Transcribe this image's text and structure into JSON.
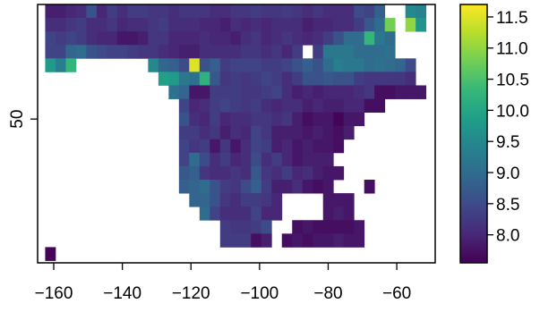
{
  "chart_data": {
    "type": "heatmap",
    "title": "",
    "xlabel": "",
    "ylabel": "",
    "xlim": [
      -164.7,
      -48.8
    ],
    "ylim": [
      18.0,
      75.5
    ],
    "x_ticks": [
      -160,
      -140,
      -120,
      -100,
      -80,
      -60
    ],
    "x_tick_labels": [
      "−160",
      "−140",
      "−120",
      "−100",
      "−80",
      "−60"
    ],
    "y_ticks": [
      50
    ],
    "y_tick_labels": [
      "50"
    ],
    "cell_size_deg": 3,
    "x_centers": [
      -161,
      -158,
      -155,
      -152,
      -149,
      -146,
      -143,
      -140,
      -137,
      -134,
      -131,
      -128,
      -125,
      -122,
      -119,
      -116,
      -113,
      -110,
      -107,
      -104,
      -101,
      -98,
      -95,
      -92,
      -89,
      -86,
      -83,
      -80,
      -77,
      -74,
      -71,
      -68,
      -65,
      -62,
      -59,
      -56,
      -53,
      -50
    ],
    "y_centers": [
      74,
      71,
      68,
      65,
      62,
      59,
      56,
      53,
      50,
      47,
      44,
      41,
      38,
      35,
      32,
      29,
      26,
      23,
      20
    ],
    "values": [
      [
        7.9,
        7.9,
        8.0,
        8.1,
        8.6,
        8.0,
        8.3,
        8.1,
        8.3,
        8.3,
        8.2,
        8.2,
        8.1,
        8.2,
        8.2,
        8.2,
        8.1,
        8.1,
        8.2,
        8.2,
        8.3,
        8.2,
        8.2,
        8.3,
        8.2,
        8.1,
        8.2,
        8.1,
        8.1,
        8.1,
        8.5,
        8.4,
        8.8,
        null,
        null,
        9.5,
        9.4,
        null
      ],
      [
        8.1,
        8.1,
        8.2,
        8.3,
        8.1,
        8.1,
        8.2,
        8.0,
        8.1,
        8.1,
        8.2,
        8.3,
        8.1,
        8.1,
        8.1,
        8.0,
        8.0,
        7.9,
        8.1,
        8.0,
        8.1,
        8.0,
        8.1,
        8.1,
        8.1,
        7.9,
        8.0,
        8.0,
        8.1,
        8.1,
        8.3,
        8.7,
        9.0,
        10.8,
        null,
        11.0,
        9.7,
        null
      ],
      [
        8.4,
        8.3,
        8.4,
        8.3,
        8.1,
        8.0,
        8.0,
        7.8,
        7.8,
        7.9,
        8.2,
        8.2,
        8.0,
        8.0,
        8.0,
        8.1,
        8.0,
        8.0,
        7.9,
        8.1,
        8.2,
        8.0,
        8.1,
        8.2,
        8.1,
        8.0,
        8.1,
        8.3,
        8.6,
        9.0,
        9.0,
        10.3,
        9.2,
        9.0,
        null,
        null,
        null,
        null
      ],
      [
        8.4,
        8.4,
        8.9,
        9.0,
        8.6,
        8.5,
        8.4,
        8.4,
        8.3,
        8.2,
        8.2,
        8.1,
        8.0,
        7.9,
        7.9,
        8.1,
        8.1,
        8.1,
        8.1,
        8.2,
        8.2,
        8.1,
        8.2,
        8.0,
        8.3,
        null,
        8.3,
        9.2,
        9.2,
        9.2,
        9.0,
        9.0,
        9.0,
        9.1,
        null,
        null,
        null,
        null
      ],
      [
        9.8,
        9.3,
        10.3,
        null,
        null,
        null,
        null,
        null,
        null,
        null,
        9.5,
        8.9,
        8.8,
        8.5,
        11.5,
        8.6,
        8.8,
        8.3,
        8.4,
        8.4,
        8.4,
        8.3,
        8.3,
        8.4,
        8.6,
        8.8,
        8.6,
        9.0,
        9.3,
        9.2,
        9.2,
        9.0,
        9.1,
        9.0,
        8.9,
        8.5,
        null,
        null
      ],
      [
        null,
        null,
        null,
        null,
        null,
        null,
        null,
        null,
        null,
        null,
        null,
        9.9,
        9.8,
        9.2,
        9.1,
        10.2,
        8.7,
        8.2,
        8.3,
        8.2,
        8.3,
        8.4,
        8.3,
        8.1,
        8.3,
        8.6,
        8.6,
        8.7,
        8.6,
        8.6,
        8.3,
        8.2,
        8.2,
        8.2,
        8.2,
        8.1,
        null,
        null
      ],
      [
        null,
        null,
        null,
        null,
        null,
        null,
        null,
        null,
        null,
        null,
        null,
        null,
        9.1,
        8.9,
        7.8,
        7.8,
        8.3,
        8.3,
        8.3,
        8.2,
        8.2,
        8.3,
        8.4,
        8.1,
        7.9,
        8.0,
        7.9,
        8.0,
        8.0,
        8.0,
        8.1,
        8.2,
        7.7,
        7.7,
        7.8,
        7.8,
        7.8,
        null
      ],
      [
        null,
        null,
        null,
        null,
        null,
        null,
        null,
        null,
        null,
        null,
        null,
        null,
        null,
        8.4,
        8.0,
        8.1,
        8.3,
        8.4,
        8.3,
        8.2,
        8.3,
        8.1,
        8.0,
        8.1,
        8.1,
        7.9,
        8.0,
        7.9,
        7.9,
        8.0,
        8.0,
        7.7,
        7.7,
        null,
        null,
        null,
        null,
        null
      ],
      [
        null,
        null,
        null,
        null,
        null,
        null,
        null,
        null,
        null,
        null,
        null,
        null,
        null,
        8.6,
        8.1,
        8.0,
        8.3,
        8.0,
        8.1,
        8.1,
        8.2,
        8.2,
        8.1,
        8.2,
        7.9,
        7.7,
        7.8,
        7.8,
        7.6,
        7.8,
        7.8,
        null,
        null,
        null,
        null,
        null,
        null,
        null
      ],
      [
        null,
        null,
        null,
        null,
        null,
        null,
        null,
        null,
        null,
        null,
        null,
        null,
        null,
        8.3,
        8.3,
        8.1,
        8.2,
        7.9,
        8.1,
        8.0,
        8.4,
        8.2,
        7.9,
        7.9,
        7.9,
        7.8,
        7.9,
        7.8,
        7.7,
        7.9,
        null,
        null,
        null,
        null,
        null,
        null,
        null,
        null
      ],
      [
        null,
        null,
        null,
        null,
        null,
        null,
        null,
        null,
        null,
        null,
        null,
        null,
        null,
        8.4,
        8.2,
        8.3,
        7.8,
        8.2,
        7.8,
        8.1,
        8.4,
        8.3,
        7.9,
        8.0,
        7.8,
        7.9,
        7.8,
        7.8,
        7.7,
        null,
        null,
        null,
        null,
        null,
        null,
        null,
        null,
        null
      ],
      [
        null,
        null,
        null,
        null,
        null,
        null,
        null,
        null,
        null,
        null,
        null,
        null,
        null,
        8.4,
        9.0,
        8.5,
        8.1,
        8.3,
        8.0,
        8.1,
        8.5,
        8.1,
        8.3,
        8.0,
        7.8,
        7.9,
        7.9,
        7.9,
        null,
        null,
        null,
        null,
        null,
        null,
        null,
        null,
        null,
        null
      ],
      [
        null,
        null,
        null,
        null,
        null,
        null,
        null,
        null,
        null,
        null,
        null,
        null,
        null,
        8.7,
        8.8,
        8.2,
        8.1,
        8.1,
        8.2,
        8.1,
        8.7,
        8.2,
        8.1,
        8.3,
        8.0,
        8.1,
        7.9,
        7.8,
        7.8,
        null,
        null,
        null,
        null,
        null,
        null,
        null,
        null,
        null
      ],
      [
        null,
        null,
        null,
        null,
        null,
        null,
        null,
        null,
        null,
        null,
        null,
        null,
        null,
        8.8,
        8.9,
        9.0,
        8.6,
        8.3,
        8.2,
        8.5,
        8.8,
        8.3,
        7.9,
        7.9,
        8.1,
        7.8,
        7.7,
        7.8,
        null,
        null,
        null,
        7.7,
        null,
        null,
        null,
        null,
        null,
        null
      ],
      [
        null,
        null,
        null,
        null,
        null,
        null,
        null,
        null,
        null,
        null,
        null,
        null,
        null,
        null,
        8.9,
        8.9,
        8.6,
        8.2,
        8.1,
        8.3,
        8.3,
        8.2,
        8.0,
        null,
        null,
        null,
        null,
        7.8,
        7.8,
        7.8,
        null,
        null,
        null,
        null,
        null,
        null,
        null,
        null
      ],
      [
        null,
        null,
        null,
        null,
        null,
        null,
        null,
        null,
        null,
        null,
        null,
        null,
        null,
        null,
        null,
        9.0,
        8.4,
        8.1,
        8.1,
        8.1,
        8.4,
        8.0,
        8.0,
        null,
        null,
        null,
        null,
        7.8,
        7.9,
        7.8,
        null,
        null,
        null,
        null,
        null,
        null,
        null,
        null
      ],
      [
        null,
        null,
        null,
        null,
        null,
        null,
        null,
        null,
        null,
        null,
        null,
        null,
        null,
        null,
        null,
        null,
        null,
        8.3,
        8.2,
        8.2,
        8.3,
        8.5,
        null,
        null,
        7.7,
        7.8,
        7.7,
        7.7,
        7.7,
        7.7,
        7.8,
        null,
        null,
        null,
        null,
        null,
        null,
        null
      ],
      [
        null,
        null,
        null,
        null,
        null,
        null,
        null,
        null,
        null,
        null,
        null,
        null,
        null,
        null,
        null,
        null,
        null,
        8.3,
        8.3,
        8.3,
        7.7,
        7.9,
        null,
        7.7,
        7.8,
        7.7,
        7.8,
        7.8,
        7.9,
        7.8,
        7.8,
        null,
        null,
        null,
        null,
        null,
        null,
        null
      ],
      [
        7.6,
        null,
        null,
        null,
        null,
        null,
        null,
        null,
        null,
        null,
        null,
        null,
        null,
        null,
        null,
        null,
        null,
        null,
        null,
        null,
        null,
        null,
        null,
        null,
        null,
        null,
        null,
        null,
        null,
        null,
        null,
        null,
        null,
        null,
        null,
        null,
        null,
        null
      ]
    ],
    "colorbar": {
      "min": 7.55,
      "max": 11.7,
      "ticks": [
        8.0,
        8.5,
        9.0,
        9.5,
        10.0,
        10.5,
        11.0,
        11.5
      ],
      "tick_labels": [
        "8.0",
        "8.5",
        "9.0",
        "9.5",
        "10.0",
        "10.5",
        "11.0",
        "11.5"
      ],
      "colormap": "viridis",
      "colors": [
        "#440154",
        "#482878",
        "#3e4989",
        "#31688e",
        "#26828e",
        "#1f9e89",
        "#35b779",
        "#6ece58",
        "#b5de2b",
        "#fde725"
      ]
    },
    "grid": false,
    "legend": "colorbar-right"
  }
}
